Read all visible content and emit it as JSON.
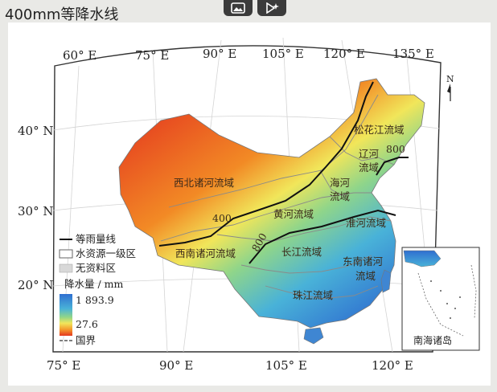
{
  "title": "400mm等降水线",
  "top_ticks": [
    "60° E",
    "75° E",
    "90° E",
    "105° E",
    "120° E",
    "135° E"
  ],
  "bottom_ticks": [
    "75° E",
    "90° E",
    "105° E",
    "120° E"
  ],
  "lat_ticks": [
    "40° N",
    "30° N",
    "20° N"
  ],
  "north": "N",
  "regions": {
    "northwest": "西北诸河流域",
    "songhua": "松花江流域",
    "liao_1": "辽河",
    "liao_2": "流域",
    "hai_1": "海河",
    "hai_2": "流域",
    "huanghe": "黄河流域",
    "huaihe": "淮河流域",
    "yangtze": "长江流域",
    "southwest": "西南诸河流域",
    "southeast_1": "东南诸河",
    "southeast_2": "流域",
    "pearl": "珠江流域"
  },
  "isohyets": {
    "label_400": "400",
    "label_800_north": "800",
    "label_800_south": "800"
  },
  "legend": {
    "isohyet": "等雨量线",
    "basin": "水资源一级区",
    "nodata": "无资料区",
    "precip": "降水量 / mm",
    "max": "1 893.9",
    "min": "27.6",
    "border": "国界",
    "colors": [
      "#2f6fd0",
      "#49b2d8",
      "#8fd58a",
      "#f1e65a",
      "#f49a2c",
      "#e4371f"
    ]
  },
  "inset_label": "南海诸岛"
}
